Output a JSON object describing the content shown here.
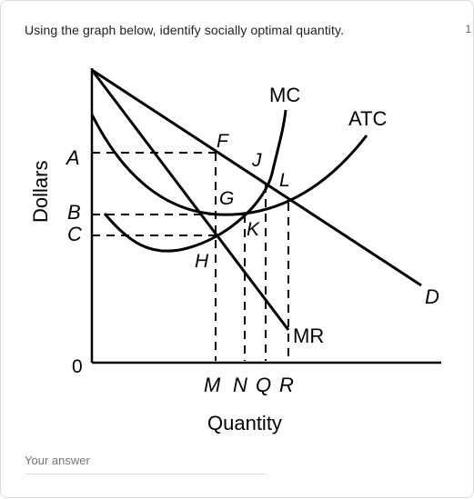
{
  "question": {
    "text": "Using the graph below, identify socially optimal quantity.",
    "points": "1"
  },
  "graph": {
    "y_axis_label": "Dollars",
    "x_axis_label": "Quantity",
    "origin_label": "0",
    "curve_labels": {
      "mc": "MC",
      "atc": "ATC",
      "demand": "D",
      "mr": "MR"
    },
    "price_labels": [
      "A",
      "B",
      "C"
    ],
    "quantity_labels": [
      "M",
      "N",
      "Q",
      "R"
    ],
    "point_labels": [
      "F",
      "G",
      "H",
      "J",
      "K",
      "L"
    ]
  },
  "answer": {
    "placeholder": "Your answer"
  }
}
